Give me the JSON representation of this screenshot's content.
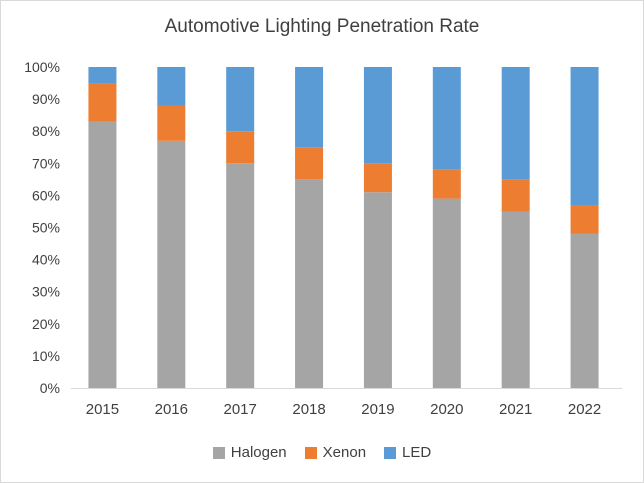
{
  "chart_data": {
    "type": "bar",
    "stacked": true,
    "percent": true,
    "title": "Automotive Lighting Penetration Rate",
    "categories": [
      "2015",
      "2016",
      "2017",
      "2018",
      "2019",
      "2020",
      "2021",
      "2022"
    ],
    "series": [
      {
        "name": "Halogen",
        "color": "#a5a5a5",
        "values": [
          83,
          77,
          70,
          65,
          61,
          59,
          55,
          48
        ]
      },
      {
        "name": "Xenon",
        "color": "#ed7d31",
        "values": [
          12,
          11,
          10,
          10,
          9,
          9,
          10,
          9
        ]
      },
      {
        "name": "LED",
        "color": "#5b9bd5",
        "values": [
          5,
          12,
          20,
          25,
          30,
          32,
          35,
          43
        ]
      }
    ],
    "ylim": [
      0,
      100
    ],
    "yticks": [
      "0%",
      "10%",
      "20%",
      "30%",
      "40%",
      "50%",
      "60%",
      "70%",
      "80%",
      "90%",
      "100%"
    ],
    "grid": false,
    "legend_position": "bottom"
  }
}
